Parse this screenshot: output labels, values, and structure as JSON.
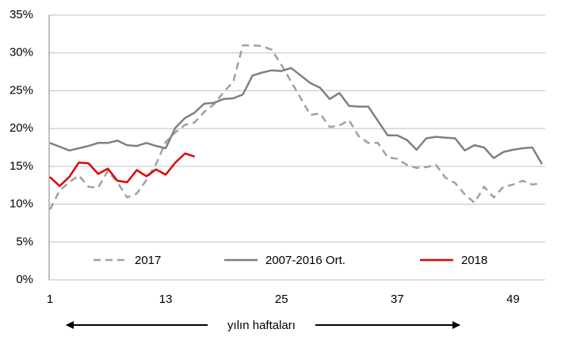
{
  "chart_data": {
    "type": "line",
    "x": [
      1,
      2,
      3,
      4,
      5,
      6,
      7,
      8,
      9,
      10,
      11,
      12,
      13,
      14,
      15,
      16,
      17,
      18,
      19,
      20,
      21,
      22,
      23,
      24,
      25,
      26,
      27,
      28,
      29,
      30,
      31,
      32,
      33,
      34,
      35,
      36,
      37,
      38,
      39,
      40,
      41,
      42,
      43,
      44,
      45,
      46,
      47,
      48,
      49,
      50,
      51,
      52
    ],
    "series": [
      {
        "name": "2017",
        "color": "#a0a0a0",
        "style": "dashed",
        "values": [
          9.3,
          11.8,
          12.9,
          13.8,
          12.3,
          12.2,
          14.4,
          12.9,
          10.9,
          11.4,
          13.2,
          15.3,
          18.2,
          19.5,
          20.5,
          20.8,
          22.2,
          23.2,
          24.8,
          26.2,
          31.0,
          31.0,
          30.9,
          30.4,
          28.4,
          26.2,
          24.0,
          21.8,
          22.0,
          20.2,
          20.4,
          21.1,
          19.0,
          18.1,
          18.1,
          16.2,
          16.0,
          15.2,
          14.8,
          14.9,
          15.2,
          13.5,
          12.8,
          11.3,
          10.2,
          12.3,
          10.9,
          12.3,
          12.6,
          13.1,
          12.6,
          12.8
        ]
      },
      {
        "name": "2007-2016 Ort.",
        "color": "#808080",
        "style": "solid",
        "values": [
          18.1,
          17.6,
          17.1,
          17.4,
          17.7,
          18.1,
          18.1,
          18.4,
          17.8,
          17.7,
          18.1,
          17.7,
          17.4,
          20.1,
          21.4,
          22.1,
          23.3,
          23.4,
          23.9,
          24.0,
          24.5,
          27.0,
          27.4,
          27.7,
          27.6,
          28.0,
          27.0,
          26.0,
          25.4,
          23.9,
          24.7,
          23.0,
          22.9,
          22.9,
          21.0,
          19.1,
          19.1,
          18.5,
          17.2,
          18.7,
          18.9,
          18.8,
          18.7,
          17.1,
          17.8,
          17.5,
          16.1,
          16.9,
          17.2,
          17.4,
          17.5,
          15.3
        ]
      },
      {
        "name": "2018",
        "color": "#e00000",
        "style": "solid",
        "values": [
          13.6,
          12.4,
          13.6,
          15.5,
          15.4,
          14.0,
          14.7,
          13.1,
          12.9,
          14.5,
          13.7,
          14.6,
          13.9,
          15.5,
          16.7,
          16.3,
          null,
          null,
          null,
          null,
          null,
          null,
          null,
          null,
          null,
          null,
          null,
          null,
          null,
          null,
          null,
          null,
          null,
          null,
          null,
          null,
          null,
          null,
          null,
          null,
          null,
          null,
          null,
          null,
          null,
          null,
          null,
          null,
          null,
          null,
          null,
          null
        ]
      }
    ],
    "xlim": [
      1,
      52
    ],
    "xticks": [
      1,
      13,
      25,
      37,
      49
    ],
    "ylim": [
      0,
      35
    ],
    "yticks": [
      {
        "value": 0,
        "label": "0%"
      },
      {
        "value": 5,
        "label": "5%"
      },
      {
        "value": 10,
        "label": "10%"
      },
      {
        "value": 15,
        "label": "15%"
      },
      {
        "value": 20,
        "label": "20%"
      },
      {
        "value": 25,
        "label": "25%"
      },
      {
        "value": 30,
        "label": "30%"
      },
      {
        "value": 35,
        "label": "35%"
      }
    ],
    "grid": true,
    "legend": "bottom",
    "annotation": "yılın haftaları"
  }
}
